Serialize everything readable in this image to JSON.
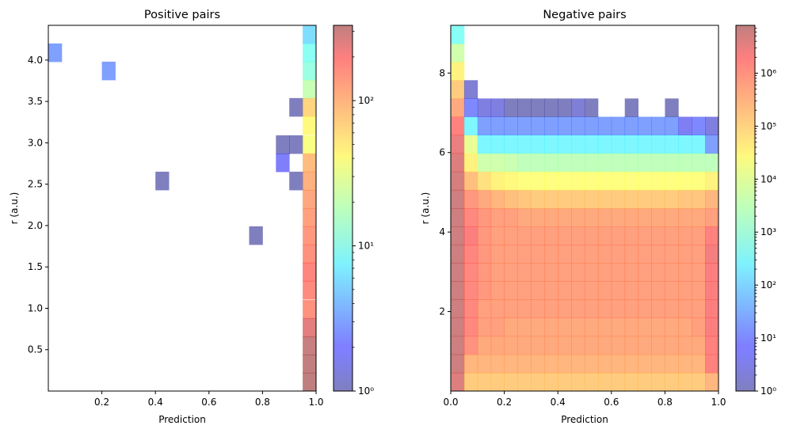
{
  "chart_data": [
    {
      "type": "heatmap",
      "title": "Positive pairs",
      "xlabel": "Prediction",
      "ylabel": "r (a.u.)",
      "xlim": [
        0.0,
        1.0
      ],
      "ylim": [
        0.0,
        4.42
      ],
      "xticks": [
        0.2,
        0.4,
        0.6,
        0.8,
        1.0
      ],
      "xtick_labels": [
        "0.2",
        "0.4",
        "0.6",
        "0.8",
        "1.0"
      ],
      "yticks": [
        0.5,
        1.0,
        1.5,
        2.0,
        2.5,
        3.0,
        3.5,
        4.0
      ],
      "ytick_labels": [
        "0.5",
        "1.0",
        "1.5",
        "2.0",
        "2.5",
        "3.0",
        "3.5",
        "4.0"
      ],
      "bin_width": 0.05,
      "bin_height": 0.221,
      "cells": [
        {
          "x0": 0.0,
          "y0": 3.98,
          "count": 3
        },
        {
          "x0": 0.2,
          "y0": 3.76,
          "count": 3
        },
        {
          "x0": 0.9,
          "y0": 3.32,
          "count": 1
        },
        {
          "x0": 0.85,
          "y0": 2.87,
          "count": 1
        },
        {
          "x0": 0.9,
          "y0": 2.87,
          "count": 1
        },
        {
          "x0": 0.85,
          "y0": 2.65,
          "count": 2
        },
        {
          "x0": 0.4,
          "y0": 2.43,
          "count": 1
        },
        {
          "x0": 0.9,
          "y0": 2.43,
          "count": 1
        },
        {
          "x0": 0.75,
          "y0": 1.77,
          "count": 1
        },
        {
          "x0": 0.95,
          "y0": 4.2,
          "count": 6
        },
        {
          "x0": 0.95,
          "y0": 3.98,
          "count": 10
        },
        {
          "x0": 0.95,
          "y0": 3.76,
          "count": 12
        },
        {
          "x0": 0.95,
          "y0": 3.54,
          "count": 20
        },
        {
          "x0": 0.95,
          "y0": 3.32,
          "count": 60
        },
        {
          "x0": 0.95,
          "y0": 3.1,
          "count": 40
        },
        {
          "x0": 0.95,
          "y0": 2.87,
          "count": 35
        },
        {
          "x0": 0.95,
          "y0": 2.65,
          "count": 80
        },
        {
          "x0": 0.95,
          "y0": 2.43,
          "count": 90
        },
        {
          "x0": 0.95,
          "y0": 2.21,
          "count": 100
        },
        {
          "x0": 0.95,
          "y0": 1.99,
          "count": 110
        },
        {
          "x0": 0.95,
          "y0": 1.77,
          "count": 120
        },
        {
          "x0": 0.95,
          "y0": 1.55,
          "count": 130
        },
        {
          "x0": 0.95,
          "y0": 1.33,
          "count": 150
        },
        {
          "x0": 0.95,
          "y0": 1.11,
          "count": 140
        },
        {
          "x0": 0.95,
          "y0": 0.88,
          "count": 130
        },
        {
          "x0": 0.95,
          "y0": 0.66,
          "count": 220
        },
        {
          "x0": 0.95,
          "y0": 0.44,
          "count": 300
        },
        {
          "x0": 0.95,
          "y0": 0.22,
          "count": 320
        },
        {
          "x0": 0.95,
          "y0": 0.0,
          "count": 330
        }
      ],
      "colorbar": {
        "scale": "log",
        "range": [
          1,
          330
        ],
        "ticks": [
          1,
          10,
          100
        ],
        "tick_labels": [
          "10⁰",
          "10¹",
          "10²"
        ]
      }
    },
    {
      "type": "heatmap",
      "title": "Negative pairs",
      "xlabel": "Prediction",
      "ylabel": "r (a.u.)",
      "xlim": [
        0.0,
        1.0
      ],
      "ylim": [
        0.0,
        9.2
      ],
      "xticks": [
        0.0,
        0.2,
        0.4,
        0.6,
        0.8,
        1.0
      ],
      "xtick_labels": [
        "0.0",
        "0.2",
        "0.4",
        "0.6",
        "0.8",
        "1.0"
      ],
      "yticks": [
        2,
        4,
        6,
        8
      ],
      "ytick_labels": [
        "2",
        "4",
        "6",
        "8"
      ],
      "x_edges": [
        0.0,
        0.05,
        0.1,
        0.15,
        0.2,
        0.25,
        0.3,
        0.35,
        0.4,
        0.45,
        0.5,
        0.55,
        0.6,
        0.65,
        0.7,
        0.75,
        0.8,
        0.85,
        0.9,
        0.95,
        1.0
      ],
      "y_edges": [
        0.0,
        0.46,
        0.92,
        1.38,
        1.84,
        2.3,
        2.76,
        3.22,
        3.68,
        4.14,
        4.6,
        5.06,
        5.52,
        5.98,
        6.44,
        6.9,
        7.36,
        7.82,
        8.28,
        8.74,
        9.2
      ],
      "counts": [
        [
          3000000.0,
          100000.0,
          100000.0,
          100000.0,
          100000.0,
          100000.0,
          100000.0,
          100000.0,
          100000.0,
          100000.0,
          100000.0,
          100000.0,
          100000.0,
          100000.0,
          100000.0,
          100000.0,
          100000.0,
          100000.0,
          100000.0,
          200000.0
        ],
        [
          5000000.0,
          200000.0,
          200000.0,
          200000.0,
          200000.0,
          200000.0,
          200000.0,
          200000.0,
          200000.0,
          200000.0,
          200000.0,
          200000.0,
          200000.0,
          200000.0,
          200000.0,
          200000.0,
          200000.0,
          200000.0,
          200000.0,
          1000000.0
        ],
        [
          5000000.0,
          600000.0,
          300000.0,
          300000.0,
          300000.0,
          300000.0,
          300000.0,
          300000.0,
          300000.0,
          300000.0,
          300000.0,
          300000.0,
          300000.0,
          300000.0,
          300000.0,
          300000.0,
          300000.0,
          300000.0,
          300000.0,
          1000000.0
        ],
        [
          5000000.0,
          800000.0,
          400000.0,
          400000.0,
          300000.0,
          300000.0,
          300000.0,
          300000.0,
          300000.0,
          300000.0,
          300000.0,
          300000.0,
          300000.0,
          300000.0,
          300000.0,
          300000.0,
          300000.0,
          300000.0,
          400000.0,
          1200000.0
        ],
        [
          5000000.0,
          800000.0,
          400000.0,
          400000.0,
          400000.0,
          400000.0,
          400000.0,
          400000.0,
          400000.0,
          400000.0,
          400000.0,
          400000.0,
          400000.0,
          400000.0,
          400000.0,
          400000.0,
          400000.0,
          400000.0,
          400000.0,
          1200000.0
        ],
        [
          5000000.0,
          800000.0,
          500000.0,
          400000.0,
          400000.0,
          400000.0,
          400000.0,
          400000.0,
          400000.0,
          400000.0,
          400000.0,
          400000.0,
          400000.0,
          400000.0,
          400000.0,
          400000.0,
          400000.0,
          400000.0,
          400000.0,
          1200000.0
        ],
        [
          5000000.0,
          800000.0,
          500000.0,
          400000.0,
          400000.0,
          400000.0,
          400000.0,
          400000.0,
          400000.0,
          400000.0,
          400000.0,
          400000.0,
          400000.0,
          400000.0,
          400000.0,
          400000.0,
          400000.0,
          400000.0,
          400000.0,
          1200000.0
        ],
        [
          5000000.0,
          900000.0,
          500000.0,
          400000.0,
          400000.0,
          400000.0,
          400000.0,
          400000.0,
          400000.0,
          400000.0,
          400000.0,
          400000.0,
          400000.0,
          400000.0,
          400000.0,
          400000.0,
          400000.0,
          400000.0,
          400000.0,
          1500000.0
        ],
        [
          5000000.0,
          1200000.0,
          500000.0,
          400000.0,
          400000.0,
          400000.0,
          400000.0,
          400000.0,
          400000.0,
          400000.0,
          400000.0,
          400000.0,
          400000.0,
          400000.0,
          400000.0,
          400000.0,
          400000.0,
          400000.0,
          400000.0,
          1000000.0
        ],
        [
          5000000.0,
          800000.0,
          500000.0,
          400000.0,
          400000.0,
          300000.0,
          300000.0,
          300000.0,
          300000.0,
          300000.0,
          300000.0,
          300000.0,
          300000.0,
          300000.0,
          300000.0,
          300000.0,
          300000.0,
          300000.0,
          300000.0,
          400000.0
        ],
        [
          5000000.0,
          500000.0,
          300000.0,
          200000.0,
          150000.0,
          120000.0,
          100000.0,
          100000.0,
          100000.0,
          100000.0,
          100000.0,
          100000.0,
          100000.0,
          100000.0,
          100000.0,
          100000.0,
          100000.0,
          120000.0,
          120000.0,
          200000.0
        ],
        [
          4000000.0,
          150000.0,
          50000.0,
          30000.0,
          25000.0,
          20000.0,
          20000.0,
          20000.0,
          20000.0,
          20000.0,
          20000.0,
          20000.0,
          20000.0,
          20000.0,
          20000.0,
          20000.0,
          20000.0,
          20000.0,
          20000.0,
          30000.0
        ],
        [
          3000000.0,
          30000.0,
          5000.0,
          5000.0,
          4000.0,
          3000.0,
          3000.0,
          3000.0,
          3000.0,
          3000.0,
          3000.0,
          3000.0,
          3000.0,
          3000.0,
          3000.0,
          3000.0,
          3000.0,
          3000.0,
          3000.0,
          3000.0
        ],
        [
          2000000.0,
          10000.0,
          300.0,
          300.0,
          300.0,
          300.0,
          300.0,
          300.0,
          300.0,
          300.0,
          300.0,
          300.0,
          300.0,
          300.0,
          300.0,
          300.0,
          300.0,
          300.0,
          300.0,
          20
        ],
        [
          1000000.0,
          300.0,
          20,
          20,
          20,
          20,
          20,
          20,
          20,
          20,
          20,
          20,
          20,
          20,
          20,
          20,
          20,
          5,
          10,
          3
        ],
        [
          300000.0,
          10,
          3,
          3,
          1,
          1,
          1,
          1,
          1,
          2,
          1,
          0,
          0,
          1,
          0,
          0,
          1,
          0,
          0,
          0
        ],
        [
          100000.0,
          2,
          0,
          0,
          0,
          0,
          0,
          0,
          0,
          0,
          0,
          0,
          0,
          0,
          0,
          0,
          0,
          0,
          0,
          0
        ],
        [
          30000.0,
          0,
          0,
          0,
          0,
          0,
          0,
          0,
          0,
          0,
          0,
          0,
          0,
          0,
          0,
          0,
          0,
          0,
          0,
          0
        ],
        [
          5000.0,
          0,
          0,
          0,
          0,
          0,
          0,
          0,
          0,
          0,
          0,
          0,
          0,
          0,
          0,
          0,
          0,
          0,
          0,
          0
        ],
        [
          500.0,
          0,
          0,
          0,
          0,
          0,
          0,
          0,
          0,
          0,
          0,
          0,
          0,
          0,
          0,
          0,
          0,
          0,
          0,
          0
        ]
      ],
      "colorbar": {
        "scale": "log",
        "range": [
          1,
          8000000.0
        ],
        "ticks": [
          1,
          10,
          100,
          1000,
          10000,
          100000,
          1000000
        ],
        "tick_labels": [
          "10⁰",
          "10¹",
          "10²",
          "10³",
          "10⁴",
          "10⁵",
          "10⁶"
        ]
      }
    }
  ]
}
